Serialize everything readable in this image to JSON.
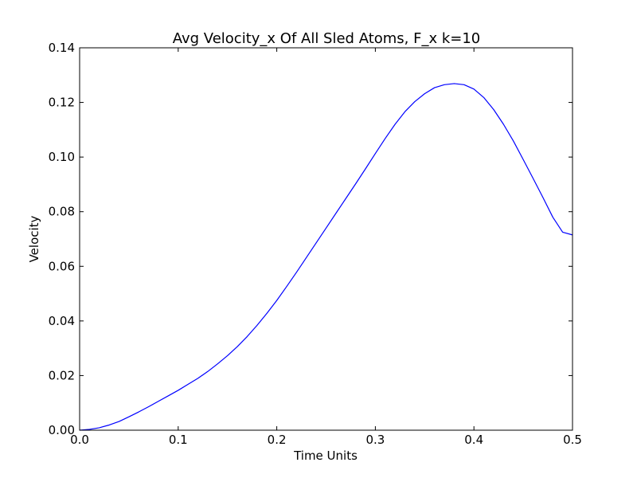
{
  "chart_data": {
    "type": "line",
    "title": "Avg Velocity_x Of All Sled Atoms, F_x k=10",
    "xlabel": "Time Units",
    "ylabel": "Velocity",
    "xlim": [
      0.0,
      0.5
    ],
    "ylim": [
      0.0,
      0.14
    ],
    "x_ticks": [
      0.0,
      0.1,
      0.2,
      0.3,
      0.4,
      0.5
    ],
    "x_tick_labels": [
      "0.0",
      "0.1",
      "0.2",
      "0.3",
      "0.4",
      "0.5"
    ],
    "y_ticks": [
      0.0,
      0.02,
      0.04,
      0.06,
      0.08,
      0.1,
      0.12,
      0.14
    ],
    "y_tick_labels": [
      "0.00",
      "0.02",
      "0.04",
      "0.06",
      "0.08",
      "0.10",
      "0.12",
      "0.14"
    ],
    "grid": false,
    "series": [
      {
        "color": "#0000ff",
        "x": [
          0.0,
          0.01,
          0.02,
          0.03,
          0.04,
          0.05,
          0.06,
          0.07,
          0.08,
          0.09,
          0.1,
          0.11,
          0.12,
          0.13,
          0.14,
          0.15,
          0.16,
          0.17,
          0.18,
          0.19,
          0.2,
          0.21,
          0.22,
          0.23,
          0.24,
          0.25,
          0.26,
          0.27,
          0.28,
          0.29,
          0.3,
          0.31,
          0.32,
          0.33,
          0.34,
          0.35,
          0.36,
          0.37,
          0.38,
          0.39,
          0.4,
          0.41,
          0.42,
          0.43,
          0.44,
          0.45,
          0.46,
          0.47,
          0.48,
          0.49,
          0.5
        ],
        "y": [
          0.0,
          0.0003,
          0.0009,
          0.0019,
          0.0032,
          0.0049,
          0.0067,
          0.0086,
          0.0106,
          0.0126,
          0.0146,
          0.0168,
          0.019,
          0.0215,
          0.0243,
          0.0273,
          0.0306,
          0.0343,
          0.0384,
          0.0428,
          0.0475,
          0.0526,
          0.0578,
          0.0632,
          0.0686,
          0.074,
          0.0794,
          0.0848,
          0.0902,
          0.0957,
          0.1013,
          0.1068,
          0.112,
          0.1166,
          0.1203,
          0.1232,
          0.1254,
          0.1265,
          0.1269,
          0.1265,
          0.1249,
          0.1218,
          0.1174,
          0.112,
          0.1059,
          0.0991,
          0.0922,
          0.0852,
          0.078,
          0.0725,
          0.0715
        ]
      }
    ]
  }
}
